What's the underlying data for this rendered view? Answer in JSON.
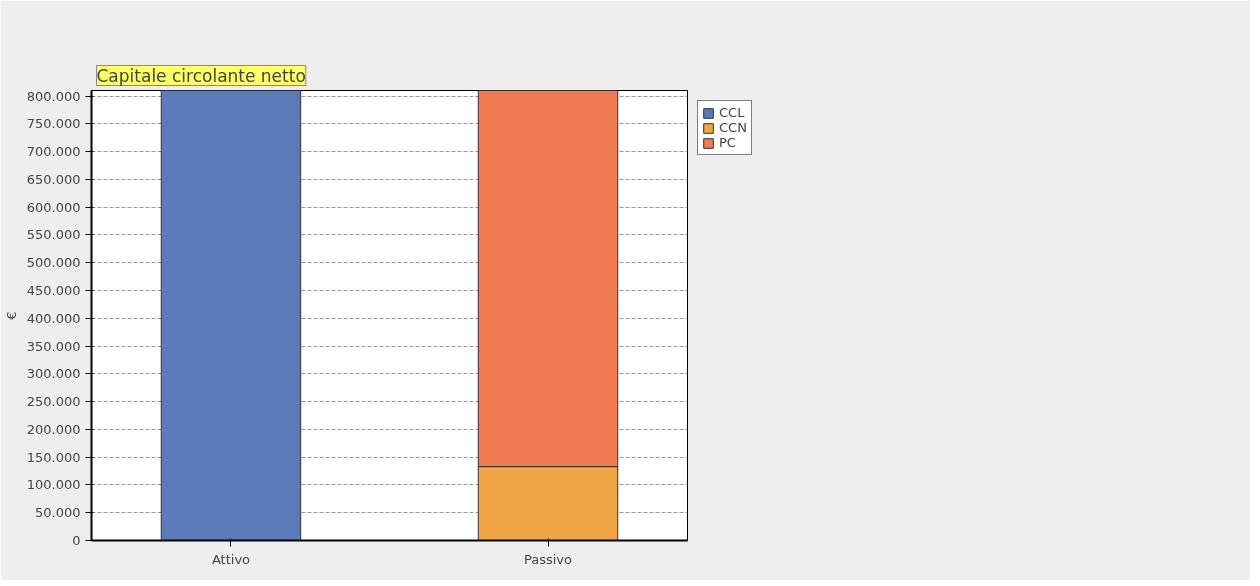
{
  "chart_data": {
    "type": "bar",
    "title": "Capitale circolante netto",
    "ylabel": "€",
    "categories": [
      "Attivo",
      "Passivo"
    ],
    "stacked": true,
    "series": [
      {
        "name": "CCL",
        "color": "#5b7bb8",
        "values": [
          810000,
          null
        ]
      },
      {
        "name": "CCN",
        "color": "#f0a545",
        "values": [
          null,
          133000
        ]
      },
      {
        "name": "PC",
        "color": "#f07a52",
        "values": [
          null,
          677000
        ]
      }
    ],
    "ylim": [
      0,
      810000
    ],
    "yticks": [
      {
        "value": 0,
        "label": "0"
      },
      {
        "value": 50000,
        "label": "50.000"
      },
      {
        "value": 100000,
        "label": "100.000"
      },
      {
        "value": 150000,
        "label": "150.000"
      },
      {
        "value": 200000,
        "label": "200.000"
      },
      {
        "value": 250000,
        "label": "250.000"
      },
      {
        "value": 300000,
        "label": "300.000"
      },
      {
        "value": 350000,
        "label": "350.000"
      },
      {
        "value": 400000,
        "label": "400.000"
      },
      {
        "value": 450000,
        "label": "450.000"
      },
      {
        "value": 500000,
        "label": "500.000"
      },
      {
        "value": 550000,
        "label": "550.000"
      },
      {
        "value": 600000,
        "label": "600.000"
      },
      {
        "value": 650000,
        "label": "650.000"
      },
      {
        "value": 700000,
        "label": "700.000"
      },
      {
        "value": 750000,
        "label": "750.000"
      },
      {
        "value": 800000,
        "label": "800.000"
      }
    ],
    "grid": "y",
    "legend": "right"
  }
}
